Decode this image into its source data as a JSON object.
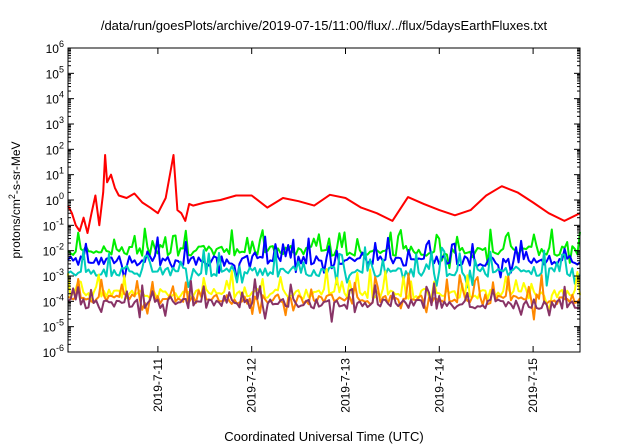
{
  "chart_data": {
    "type": "line",
    "title": "/data/run/goesPlots/archive/2019-07-15/11:00/flux/../flux/5daysEarthFluxes.txt",
    "xlabel": "Coordinated Universal Time (UTC)",
    "ylabel": {
      "pre": "protons/cm",
      "sup": "2",
      "post": "-s-sr-MeV"
    },
    "y_scale": "log",
    "ylim": [
      1e-06,
      1000000.0
    ],
    "y_ticks": [
      {
        "value": 1e-06,
        "exp": "-6"
      },
      {
        "value": 1e-05,
        "exp": "-5"
      },
      {
        "value": 0.0001,
        "exp": "-4"
      },
      {
        "value": 0.001,
        "exp": "-3"
      },
      {
        "value": 0.01,
        "exp": "-2"
      },
      {
        "value": 0.1,
        "exp": "-1"
      },
      {
        "value": 1,
        "exp": "0"
      },
      {
        "value": 10,
        "exp": "1"
      },
      {
        "value": 100,
        "exp": "2"
      },
      {
        "value": 1000,
        "exp": "3"
      },
      {
        "value": 10000,
        "exp": "4"
      },
      {
        "value": 100000,
        "exp": "5"
      },
      {
        "value": 1000000,
        "exp": "6"
      }
    ],
    "xlim": [
      "2019-07-10 01:00",
      "2019-07-15 12:00"
    ],
    "x_ticks": [
      "2019-7-11",
      "2019-7-12",
      "2019-7-13",
      "2019-7-14",
      "2019-7-15"
    ],
    "grid": false,
    "legend": "none",
    "series": [
      {
        "color": "#ff0000",
        "x": [
          "2019-07-10 01:00",
          "2019-07-10 02:00",
          "2019-07-10 03:00",
          "2019-07-10 04:00",
          "2019-07-10 05:00",
          "2019-07-10 06:00",
          "2019-07-10 07:00",
          "2019-07-10 08:00",
          "2019-07-10 09:00",
          "2019-07-10 10:00",
          "2019-07-10 10:30",
          "2019-07-10 11:00",
          "2019-07-10 12:00",
          "2019-07-10 13:00",
          "2019-07-10 14:00",
          "2019-07-10 16:00",
          "2019-07-10 18:00",
          "2019-07-10 20:00",
          "2019-07-10 22:00",
          "2019-07-11 00:00",
          "2019-07-11 02:00",
          "2019-07-11 04:00",
          "2019-07-11 05:00",
          "2019-07-11 06:00",
          "2019-07-11 07:00",
          "2019-07-11 08:00",
          "2019-07-11 09:00",
          "2019-07-11 12:00",
          "2019-07-11 16:00",
          "2019-07-11 20:00",
          "2019-07-12 00:00",
          "2019-07-12 04:00",
          "2019-07-12 08:00",
          "2019-07-12 12:00",
          "2019-07-12 16:00",
          "2019-07-12 20:00",
          "2019-07-13 00:00",
          "2019-07-13 04:00",
          "2019-07-13 08:00",
          "2019-07-13 12:00",
          "2019-07-13 16:00",
          "2019-07-13 20:00",
          "2019-07-14 00:00",
          "2019-07-14 04:00",
          "2019-07-14 08:00",
          "2019-07-14 12:00",
          "2019-07-14 16:00",
          "2019-07-14 20:00",
          "2019-07-15 00:00",
          "2019-07-15 04:00",
          "2019-07-15 08:00",
          "2019-07-15 12:00"
        ],
        "y": [
          0.6,
          0.3,
          0.1,
          0.06,
          0.2,
          0.05,
          0.3,
          1.5,
          0.1,
          2,
          60,
          5,
          10,
          3,
          1.5,
          1.2,
          1.8,
          0.8,
          0.5,
          0.3,
          1.2,
          60,
          0.4,
          0.3,
          0.15,
          0.7,
          0.6,
          0.8,
          1.0,
          1.5,
          1.5,
          0.5,
          1.2,
          0.9,
          0.6,
          1.6,
          1.2,
          0.5,
          0.3,
          0.15,
          1.3,
          0.7,
          0.4,
          0.25,
          0.4,
          1.5,
          3.5,
          2.0,
          0.8,
          0.3,
          0.15,
          0.3
        ]
      },
      {
        "color": "#00ee00",
        "x": [
          "2019-07-10 01:00",
          "2019-07-15 12:00"
        ],
        "y": [
          0.01,
          0.01
        ],
        "noise": true
      },
      {
        "color": "#0000ff",
        "x": [
          "2019-07-10 01:00",
          "2019-07-15 12:00"
        ],
        "y": [
          0.004,
          0.004
        ],
        "noise": true
      },
      {
        "color": "#00ccbb",
        "x": [
          "2019-07-10 01:00",
          "2019-07-15 12:00"
        ],
        "y": [
          0.0015,
          0.0015
        ],
        "noise": true
      },
      {
        "color": "#ffff00",
        "x": [
          "2019-07-10 01:00",
          "2019-07-15 12:00"
        ],
        "y": [
          0.0002,
          0.0002
        ],
        "noise": true
      },
      {
        "color": "#ff8800",
        "x": [
          "2019-07-10 01:00",
          "2019-07-15 12:00"
        ],
        "y": [
          0.00012,
          0.00012
        ],
        "noise": true
      },
      {
        "color": "#883366",
        "x": [
          "2019-07-10 01:00",
          "2019-07-15 12:00"
        ],
        "y": [
          8e-05,
          8e-05
        ],
        "noise": true
      }
    ]
  }
}
